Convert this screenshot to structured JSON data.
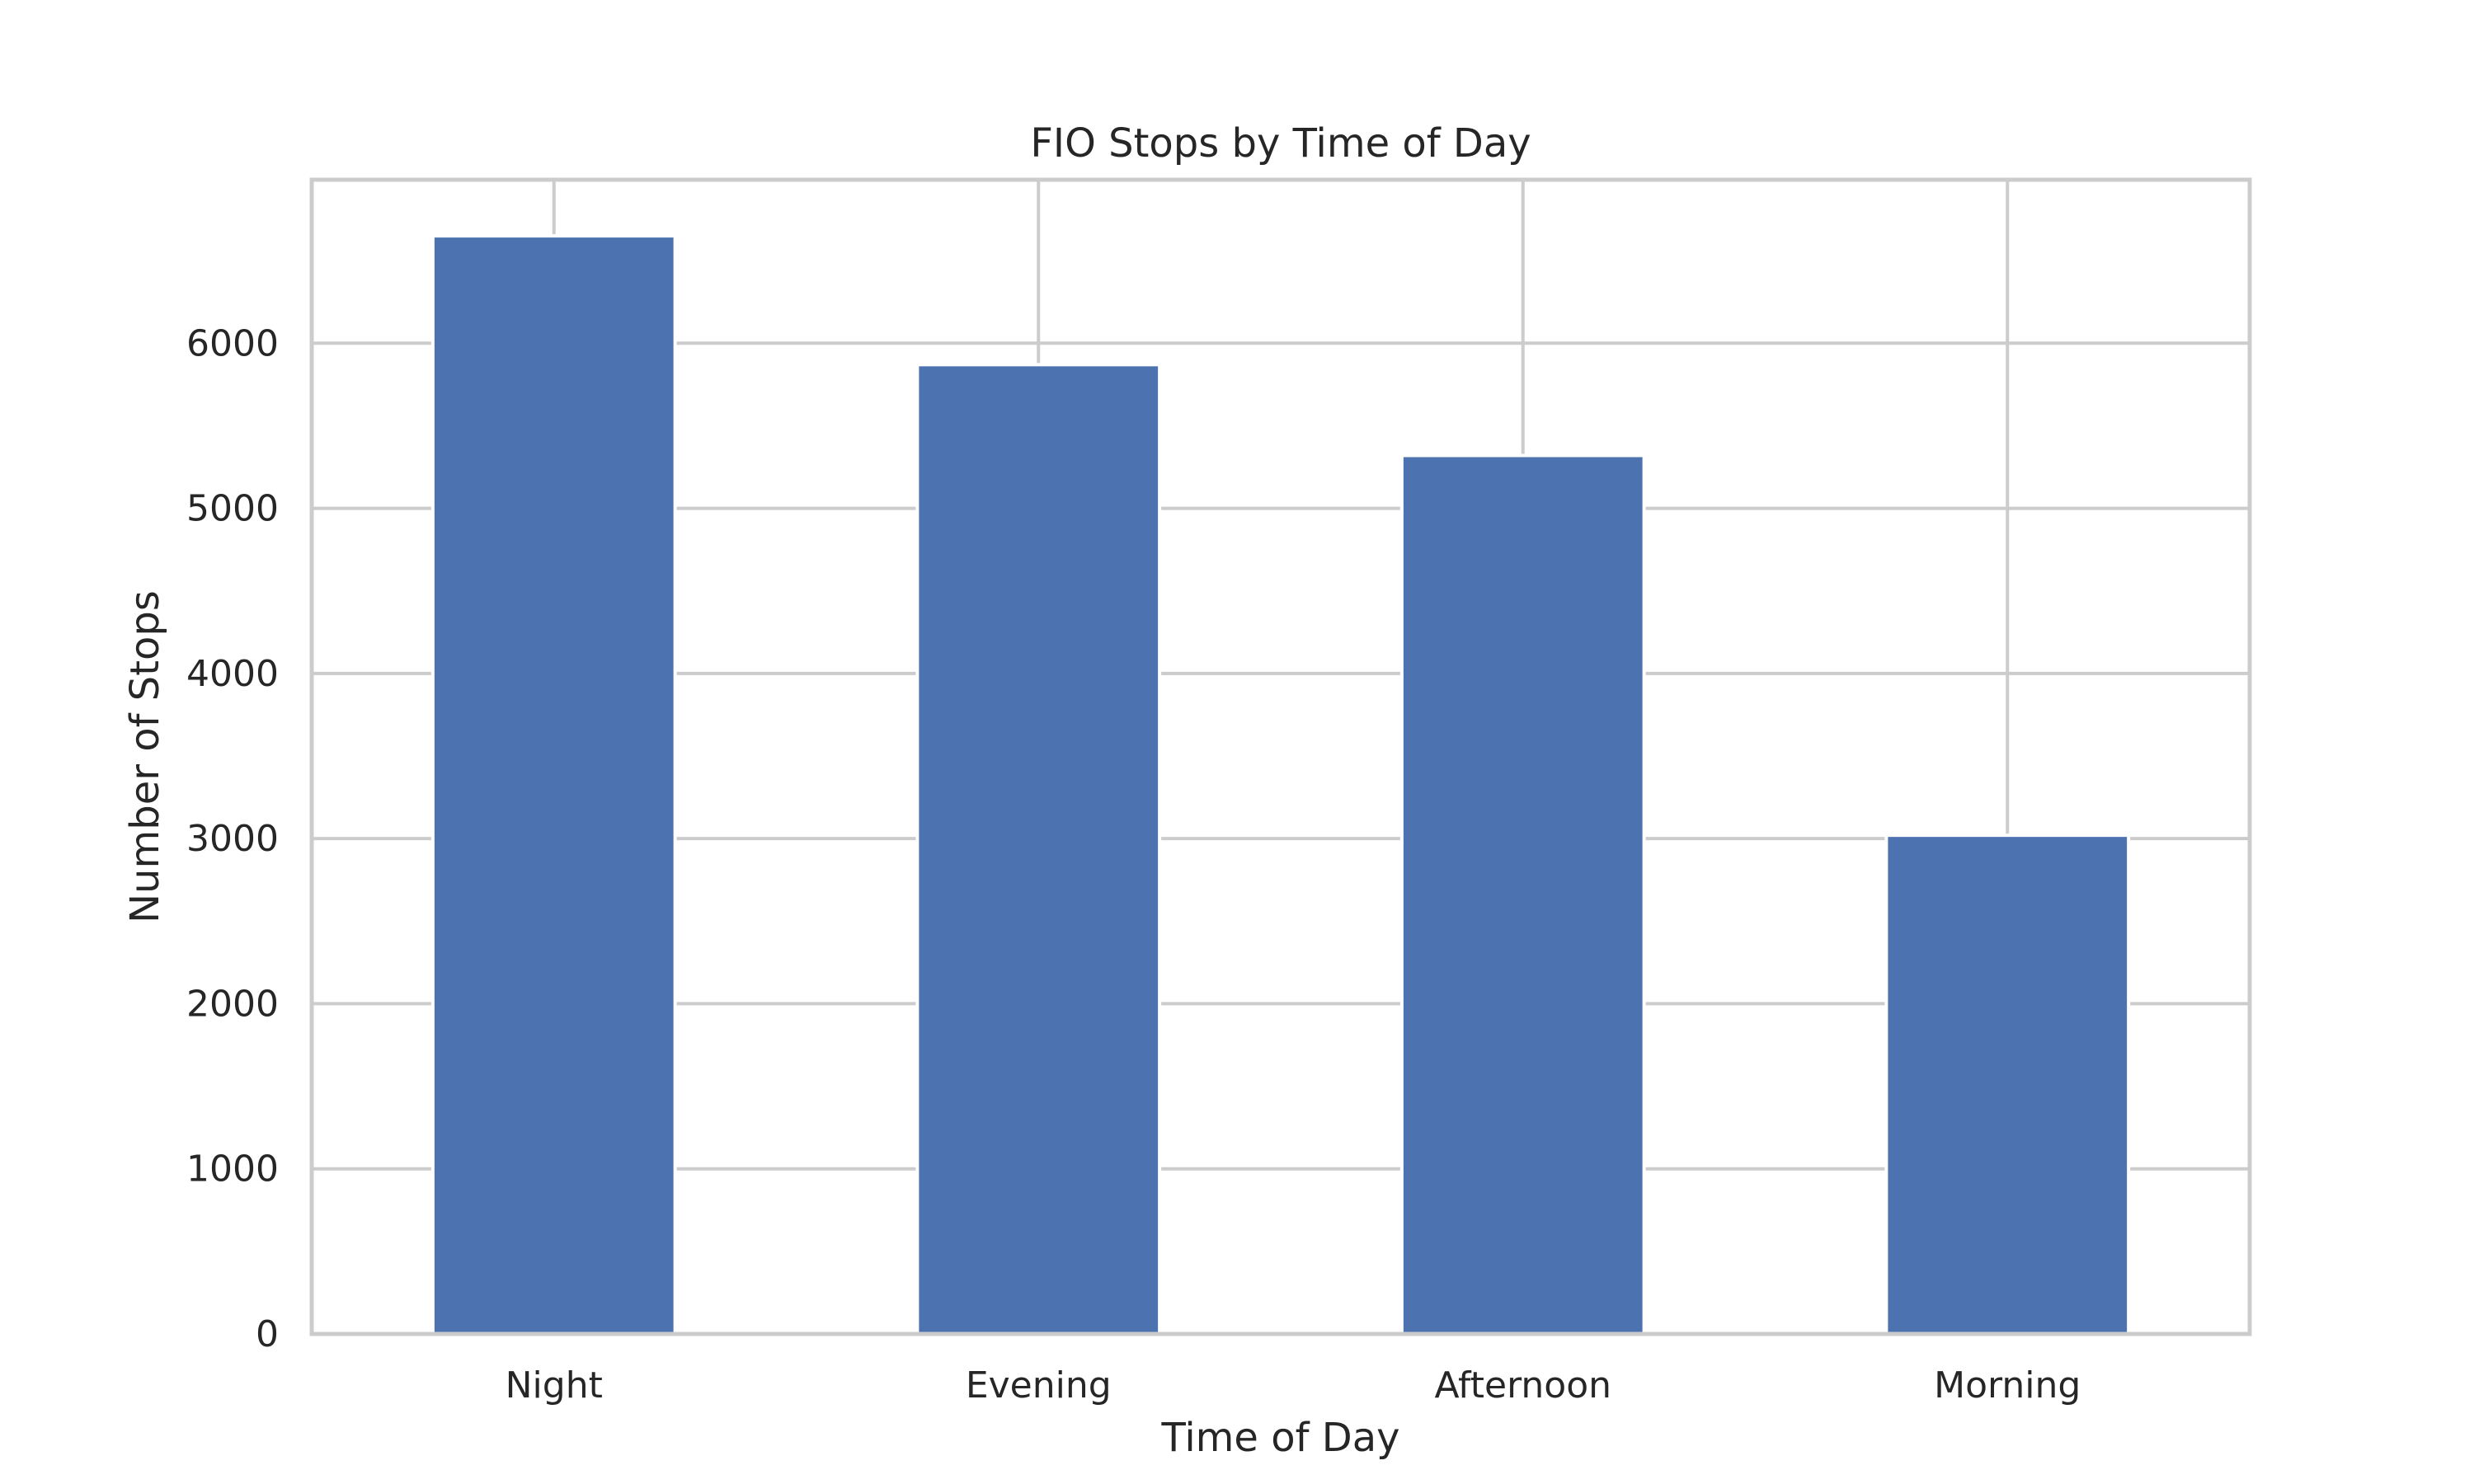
{
  "chart_data": {
    "type": "bar",
    "title": "FIO Stops by Time of Day",
    "xlabel": "Time of Day",
    "ylabel": "Number of Stops",
    "categories": [
      "Night",
      "Evening",
      "Afternoon",
      "Morning"
    ],
    "values": [
      6650,
      5870,
      5320,
      3020
    ],
    "ylim": [
      0,
      6990
    ],
    "yticks": [
      0,
      1000,
      2000,
      3000,
      4000,
      5000,
      6000
    ],
    "ytick_labels": [
      "0",
      "1000",
      "2000",
      "3000",
      "4000",
      "5000",
      "6000"
    ],
    "grid": true,
    "legend": "none",
    "colors": {
      "bar": "#4c72b0",
      "grid": "#cccccc",
      "spine": "#cccccc",
      "text": "#262626",
      "background": "#ffffff"
    }
  }
}
